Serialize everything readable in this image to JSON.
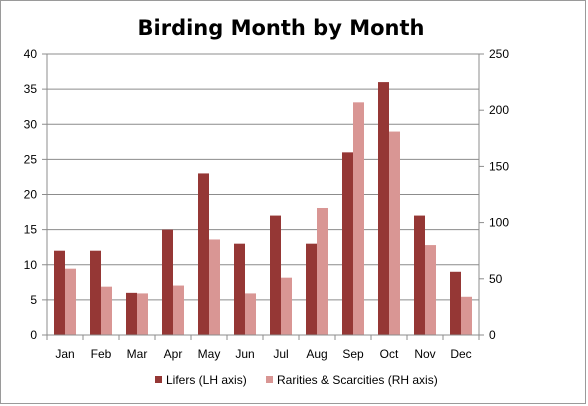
{
  "chart_data": {
    "type": "bar",
    "title": "Birding Month by Month",
    "categories": [
      "Jan",
      "Feb",
      "Mar",
      "Apr",
      "May",
      "Jun",
      "Jul",
      "Aug",
      "Sep",
      "Oct",
      "Nov",
      "Dec"
    ],
    "series": [
      {
        "name": "Lifers (LH axis)",
        "axis": "left",
        "color": "#953735",
        "values": [
          12,
          12,
          6,
          15,
          23,
          13,
          17,
          13,
          26,
          36,
          17,
          9
        ]
      },
      {
        "name": "Rarities & Scarcities (RH axis)",
        "axis": "right",
        "color": "#d99694",
        "values": [
          59,
          43,
          37,
          44,
          85,
          37,
          51,
          113,
          207,
          181,
          80,
          34
        ]
      }
    ],
    "y_left": {
      "min": 0,
      "max": 40,
      "ticks": [
        0,
        5,
        10,
        15,
        20,
        25,
        30,
        35,
        40
      ]
    },
    "y_right": {
      "min": 0,
      "max": 250,
      "ticks": [
        0,
        50,
        100,
        150,
        200,
        250
      ]
    },
    "grid": true,
    "legend": "bottom"
  }
}
